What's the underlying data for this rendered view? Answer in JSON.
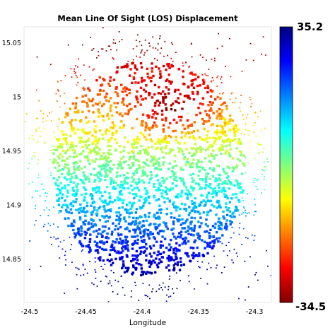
{
  "chart_data": {
    "type": "scatter",
    "title": "Mean Line Of Sight (LOS) Displacement",
    "xlabel": "Longitude",
    "ylabel": "",
    "xlim": [
      -24.505,
      -24.285
    ],
    "ylim": [
      14.81,
      15.065
    ],
    "xticks": [
      -24.5,
      -24.45,
      -24.4,
      -24.35,
      -24.3
    ],
    "xtick_labels": [
      "-24.5",
      "-24.45",
      "-24.4",
      "-24.35",
      "-24.3"
    ],
    "yticks": [
      14.85,
      14.9,
      14.95,
      15,
      15.05
    ],
    "ytick_labels": [
      "14.85",
      "14.9",
      "14.95",
      "15",
      "15.05"
    ],
    "grid": false,
    "colormap": "jet",
    "colorbar": {
      "max_label": "35.2",
      "min_label": "-34.5",
      "max": 35.2,
      "min": -34.5
    },
    "points_description_values": {
      "north_center_max": -34.5,
      "south_max": 35.2
    },
    "colors": {
      "low": "#7f0000",
      "mid": "#7fff7f",
      "high": "#00007f"
    }
  }
}
